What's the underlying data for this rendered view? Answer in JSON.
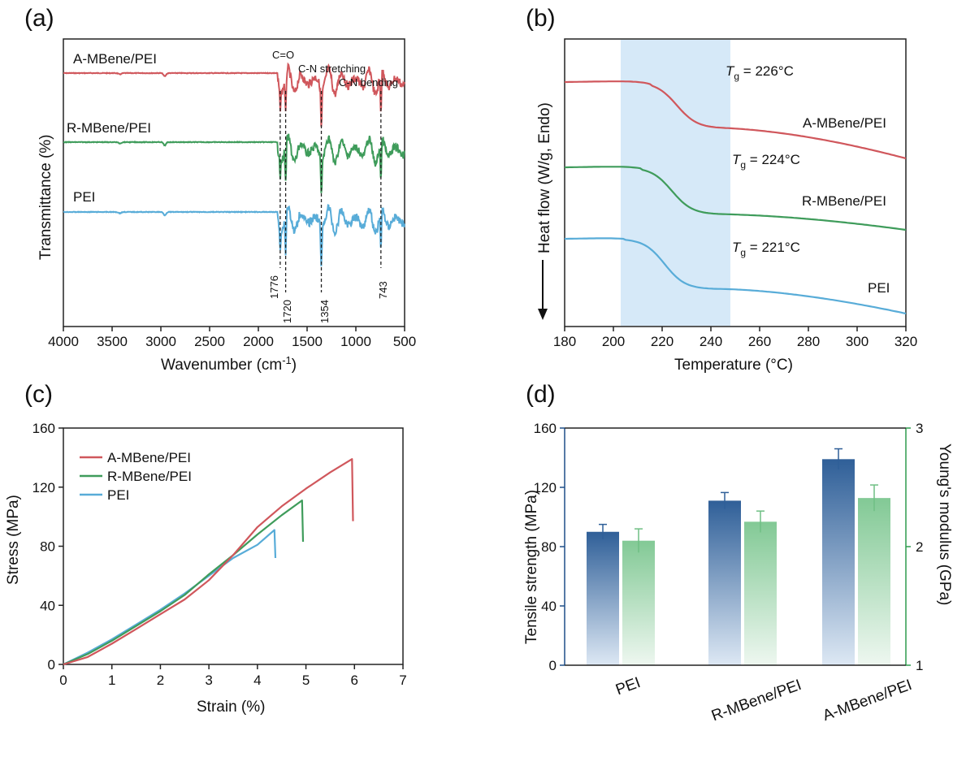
{
  "colors": {
    "red": "#d0575c",
    "green": "#3f9c5b",
    "blue": "#58acd8",
    "bar_blue": "#2f5f98",
    "bar_green": "#6fbf84",
    "shade": "#d6e9f8",
    "axis_green": "#2e9c4e",
    "axis_blue": "#1f4f88"
  },
  "chart_data": [
    {
      "panel": "(a)",
      "type": "line",
      "title": "",
      "xlabel": "Wavenumber (cm",
      "xlabel_sup": "-1",
      "xlabel_end": ")",
      "ylabel": "Transmittance (%)",
      "xlim": [
        4000,
        500
      ],
      "xticks": [
        4000,
        3500,
        3000,
        2500,
        2000,
        1500,
        1000,
        500
      ],
      "series": [
        {
          "name": "A-MBene/PEI",
          "color_key": "red",
          "offset": 2
        },
        {
          "name": "R-MBene/PEI",
          "color_key": "green",
          "offset": 1
        },
        {
          "name": "PEI",
          "color_key": "blue",
          "offset": 0
        }
      ],
      "peaks": [
        1776,
        1720,
        1354,
        743
      ],
      "peak_labels": [
        "1776",
        "1720",
        "1354",
        "743"
      ],
      "annotations": [
        "C=O",
        "C-N stretching",
        "C-N bending"
      ]
    },
    {
      "panel": "(b)",
      "type": "line",
      "title": "",
      "xlabel": "Temperature (°C)",
      "ylabel": "Heat flow (W/g, Endo",
      "ylabel_end": ")",
      "xlim": [
        180,
        320
      ],
      "xticks": [
        180,
        200,
        220,
        240,
        260,
        280,
        300,
        320
      ],
      "shaded_range": [
        203,
        248
      ],
      "series": [
        {
          "name": "A-MBene/PEI",
          "color_key": "red",
          "tg": "226",
          "tg_text": "T",
          "tg_sub": "g",
          "tg_value": " = 226°C"
        },
        {
          "name": "R-MBene/PEI",
          "color_key": "green",
          "tg": "224",
          "tg_text": "T",
          "tg_sub": "g",
          "tg_value": " = 224°C"
        },
        {
          "name": "PEI",
          "color_key": "blue",
          "tg": "221",
          "tg_text": "T",
          "tg_sub": "g",
          "tg_value": " = 221°C"
        }
      ]
    },
    {
      "panel": "(c)",
      "type": "line",
      "title": "",
      "xlabel": "Strain (%)",
      "ylabel": "Stress (MPa)",
      "xlim": [
        0,
        7
      ],
      "ylim": [
        0,
        160
      ],
      "xticks": [
        0,
        1,
        2,
        3,
        4,
        5,
        6,
        7
      ],
      "yticks": [
        0,
        40,
        80,
        120,
        160
      ],
      "series": [
        {
          "name": "A-MBene/PEI",
          "color_key": "red",
          "points": [
            [
              0,
              0
            ],
            [
              0.5,
              5
            ],
            [
              1,
              14
            ],
            [
              1.5,
              24
            ],
            [
              2,
              34
            ],
            [
              2.5,
              44
            ],
            [
              3,
              57
            ],
            [
              3.5,
              74
            ],
            [
              4,
              93
            ],
            [
              4.5,
              107
            ],
            [
              5,
              119
            ],
            [
              5.5,
              130
            ],
            [
              5.95,
              139
            ],
            [
              5.97,
              97
            ]
          ]
        },
        {
          "name": "R-MBene/PEI",
          "color_key": "green",
          "points": [
            [
              0,
              0
            ],
            [
              0.5,
              7
            ],
            [
              1,
              16
            ],
            [
              1.5,
              26
            ],
            [
              2,
              36
            ],
            [
              2.5,
              47
            ],
            [
              3,
              61
            ],
            [
              3.5,
              74
            ],
            [
              4,
              88
            ],
            [
              4.5,
              101
            ],
            [
              4.92,
              111
            ],
            [
              4.94,
              83
            ]
          ]
        },
        {
          "name": "PEI",
          "color_key": "blue",
          "points": [
            [
              0,
              0
            ],
            [
              0.5,
              8
            ],
            [
              1,
              17
            ],
            [
              1.5,
              27
            ],
            [
              2,
              37
            ],
            [
              2.5,
              48
            ],
            [
              3,
              60
            ],
            [
              3.5,
              72
            ],
            [
              4,
              81
            ],
            [
              4.35,
              91
            ],
            [
              4.37,
              72
            ]
          ]
        }
      ]
    },
    {
      "panel": "(d)",
      "type": "bar",
      "title": "",
      "categories": [
        "PEI",
        "R-MBene/PEI",
        "A-MBene/PEI"
      ],
      "ylabel": "Tensile strength (MPa)",
      "y2label": "Young's modulus (GPa)",
      "ylim": [
        0,
        160
      ],
      "y2lim": [
        1,
        3
      ],
      "yticks": [
        0,
        40,
        80,
        120,
        160
      ],
      "y2ticks": [
        1,
        2,
        3
      ],
      "series": [
        {
          "name": "Tensile strength",
          "color_key": "bar_blue",
          "axis": "left",
          "values": [
            90,
            111,
            139
          ],
          "errors": [
            5,
            5.5,
            7
          ]
        },
        {
          "name": "Young's modulus",
          "color_key": "bar_green",
          "axis": "right",
          "values": [
            2.05,
            2.21,
            2.41
          ],
          "errors": [
            0.1,
            0.09,
            0.11
          ]
        }
      ]
    }
  ]
}
